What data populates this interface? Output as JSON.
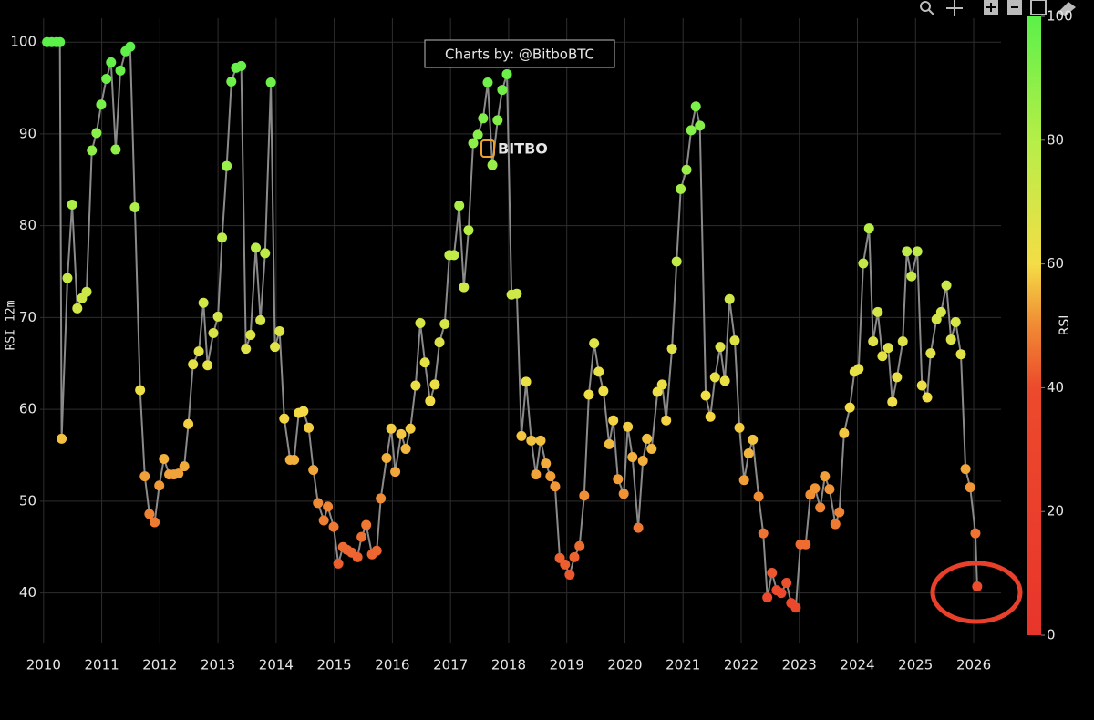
{
  "chart_data": {
    "type": "line",
    "title": "Charts by: @BitboBTC",
    "logo": "BITBO",
    "y_label": "RSI 12m",
    "line_color": "#8a8a8a",
    "grid": true,
    "xlim": [
      2009.94,
      2026.47
    ],
    "xticks": [
      2010,
      2011,
      2012,
      2013,
      2014,
      2015,
      2016,
      2017,
      2018,
      2019,
      2020,
      2021,
      2022,
      2023,
      2024,
      2025,
      2026
    ],
    "ylim": [
      34.6,
      102.6
    ],
    "yticks": [
      40,
      50,
      60,
      70,
      80,
      90,
      100
    ],
    "colorscale": [
      [
        0,
        "#e8352b"
      ],
      [
        40,
        "#ec4a2c"
      ],
      [
        50,
        "#f08a34"
      ],
      [
        60,
        "#f4dd46"
      ],
      [
        80,
        "#b6ee48"
      ],
      [
        100,
        "#5cf04a"
      ]
    ],
    "colorbar": {
      "title": "RSI",
      "range": [
        0,
        100
      ],
      "ticks": [
        0,
        20,
        40,
        60,
        80,
        100
      ]
    },
    "x": [
      2010.06,
      2010.14,
      2010.22,
      2010.28,
      2010.31,
      2010.41,
      2010.49,
      2010.58,
      2010.66,
      2010.74,
      2010.83,
      2010.91,
      2010.99,
      2011.08,
      2011.16,
      2011.24,
      2011.32,
      2011.41,
      2011.49,
      2011.57,
      2011.66,
      2011.74,
      2011.82,
      2011.91,
      2011.99,
      2012.07,
      2012.16,
      2012.24,
      2012.32,
      2012.42,
      2012.49,
      2012.57,
      2012.67,
      2012.75,
      2012.82,
      2012.92,
      2013.0,
      2013.07,
      2013.15,
      2013.23,
      2013.31,
      2013.4,
      2013.48,
      2013.56,
      2013.65,
      2013.73,
      2013.81,
      2013.91,
      2013.98,
      2014.06,
      2014.14,
      2014.24,
      2014.31,
      2014.39,
      2014.47,
      2014.56,
      2014.64,
      2014.72,
      2014.82,
      2014.89,
      2014.99,
      2015.07,
      2015.15,
      2015.22,
      2015.3,
      2015.4,
      2015.47,
      2015.55,
      2015.65,
      2015.73,
      2015.8,
      2015.9,
      2015.98,
      2016.05,
      2016.15,
      2016.23,
      2016.31,
      2016.4,
      2016.48,
      2016.56,
      2016.65,
      2016.73,
      2016.81,
      2016.9,
      2016.98,
      2017.06,
      2017.15,
      2017.23,
      2017.31,
      2017.39,
      2017.47,
      2017.56,
      2017.64,
      2017.72,
      2017.81,
      2017.89,
      2017.97,
      2018.05,
      2018.14,
      2018.22,
      2018.3,
      2018.39,
      2018.47,
      2018.55,
      2018.64,
      2018.72,
      2018.8,
      2018.88,
      2018.97,
      2019.05,
      2019.13,
      2019.22,
      2019.3,
      2019.38,
      2019.47,
      2019.55,
      2019.63,
      2019.73,
      2019.8,
      2019.88,
      2019.98,
      2020.05,
      2020.13,
      2020.23,
      2020.31,
      2020.38,
      2020.46,
      2020.56,
      2020.64,
      2020.71,
      2020.81,
      2020.89,
      2020.96,
      2021.06,
      2021.14,
      2021.22,
      2021.29,
      2021.39,
      2021.47,
      2021.55,
      2021.64,
      2021.72,
      2021.8,
      2021.89,
      2021.97,
      2022.05,
      2022.13,
      2022.2,
      2022.3,
      2022.38,
      2022.45,
      2022.53,
      2022.61,
      2022.69,
      2022.78,
      2022.86,
      2022.94,
      2023.02,
      2023.11,
      2023.19,
      2023.27,
      2023.36,
      2023.44,
      2023.52,
      2023.62,
      2023.69,
      2023.77,
      2023.87,
      2023.95,
      2024.02,
      2024.1,
      2024.2,
      2024.27,
      2024.35,
      2024.43,
      2024.53,
      2024.6,
      2024.68,
      2024.78,
      2024.85,
      2024.93,
      2025.03,
      2025.11,
      2025.2,
      2025.26,
      2025.36,
      2025.44,
      2025.53,
      2025.61,
      2025.69,
      2025.78,
      2025.86,
      2025.94,
      2026.03,
      2026.06
    ],
    "values": [
      100,
      100,
      100,
      100,
      56.8,
      74.3,
      82.3,
      71.0,
      72.1,
      72.8,
      88.2,
      90.1,
      93.2,
      96.0,
      97.8,
      88.3,
      96.9,
      99.0,
      99.5,
      82.0,
      62.1,
      52.7,
      48.6,
      47.7,
      51.7,
      54.6,
      52.9,
      52.9,
      53.0,
      53.8,
      58.4,
      64.9,
      66.3,
      71.6,
      64.8,
      68.3,
      70.1,
      78.7,
      86.5,
      95.7,
      97.2,
      97.4,
      66.6,
      68.1,
      77.6,
      69.7,
      77.0,
      95.6,
      66.8,
      68.5,
      59.0,
      54.5,
      54.5,
      59.6,
      59.8,
      58.0,
      53.4,
      49.8,
      47.9,
      49.4,
      47.2,
      43.2,
      45.0,
      44.7,
      44.4,
      43.9,
      46.1,
      47.4,
      44.2,
      44.6,
      50.3,
      54.7,
      57.9,
      53.2,
      57.3,
      55.7,
      57.9,
      62.6,
      69.4,
      65.1,
      60.9,
      62.7,
      67.3,
      69.3,
      76.8,
      76.8,
      82.2,
      73.3,
      79.5,
      89.0,
      89.9,
      91.7,
      95.6,
      86.6,
      91.5,
      94.8,
      96.5,
      72.5,
      72.6,
      57.1,
      63.0,
      56.6,
      52.9,
      56.6,
      54.1,
      52.7,
      51.6,
      43.8,
      43.1,
      42.0,
      43.9,
      45.1,
      50.6,
      61.6,
      67.2,
      64.1,
      62.0,
      56.2,
      58.8,
      52.4,
      50.8,
      58.1,
      54.8,
      47.1,
      54.4,
      56.8,
      55.7,
      61.9,
      62.7,
      58.8,
      66.6,
      76.1,
      84.0,
      86.1,
      90.4,
      93.0,
      90.9,
      61.5,
      59.2,
      63.5,
      66.8,
      63.1,
      72.0,
      67.5,
      58.0,
      52.3,
      55.2,
      56.7,
      50.5,
      46.5,
      39.5,
      42.2,
      40.3,
      40.0,
      41.1,
      38.9,
      38.4,
      45.3,
      45.3,
      50.7,
      51.4,
      49.3,
      52.7,
      51.3,
      47.5,
      48.8,
      57.4,
      60.2,
      64.1,
      64.4,
      75.9,
      79.7,
      67.4,
      70.6,
      65.8,
      66.7,
      60.8,
      63.5,
      67.4,
      77.2,
      74.5,
      77.2,
      62.6,
      61.3,
      66.1,
      69.8,
      70.6,
      73.5,
      67.6,
      69.5,
      66.0,
      53.5,
      51.5,
      46.5,
      40.7
    ]
  }
}
